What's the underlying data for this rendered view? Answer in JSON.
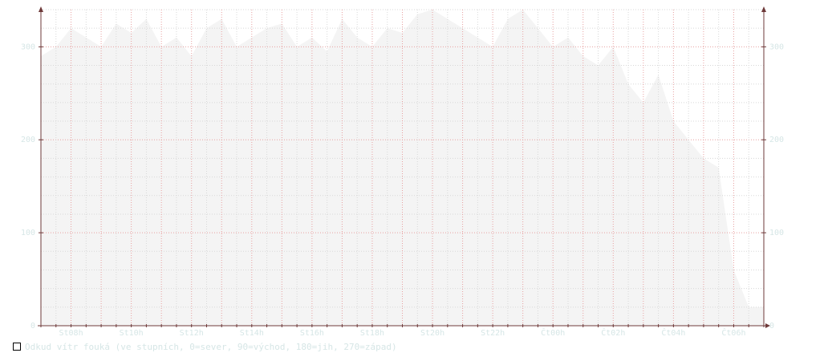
{
  "chart_data": {
    "type": "area",
    "title": "",
    "xlabel": "",
    "ylabel": "",
    "ylim": [
      0,
      340
    ],
    "yticks": [
      0,
      100,
      200,
      300
    ],
    "x_tick_labels": [
      "St08h",
      "St10h",
      "St12h",
      "St14h",
      "St16h",
      "St18h",
      "St20h",
      "St22h",
      "Čt00h",
      "Čt02h",
      "Čt04h",
      "Čt06h"
    ],
    "grid": true,
    "legend_position": "bottom-left",
    "colors": {
      "area": "#f4f4f4",
      "axis": "#6e3a3a",
      "grid_major": "#e8a0a0",
      "grid_minor": "#d8d8d8",
      "tick_text": "#d6e6e6"
    },
    "series": [
      {
        "name": "Odkud vítr fouká (ve stupních, 0=sever, 90=východ, 180=jih, 270=západ)",
        "unit_hours_offset": "hours after St07h",
        "x": [
          0,
          0.5,
          1,
          1.5,
          2,
          2.5,
          3,
          3.5,
          4,
          4.5,
          5,
          5.5,
          6,
          6.5,
          7,
          7.5,
          8,
          8.5,
          9,
          9.5,
          10,
          10.5,
          11,
          11.5,
          12,
          12.5,
          13,
          13.5,
          14,
          14.5,
          15,
          15.5,
          16,
          16.5,
          17,
          17.5,
          18,
          18.5,
          19,
          19.5,
          20,
          20.5,
          21,
          21.5,
          22,
          22.5,
          23,
          23.5
        ],
        "values": [
          290,
          300,
          320,
          310,
          300,
          325,
          315,
          330,
          300,
          310,
          290,
          320,
          330,
          300,
          310,
          320,
          325,
          300,
          310,
          295,
          330,
          310,
          300,
          320,
          315,
          335,
          340,
          330,
          320,
          310,
          300,
          330,
          340,
          320,
          300,
          310,
          290,
          280,
          300,
          260,
          240,
          270,
          220,
          200,
          180,
          170,
          60,
          20
        ]
      }
    ]
  }
}
